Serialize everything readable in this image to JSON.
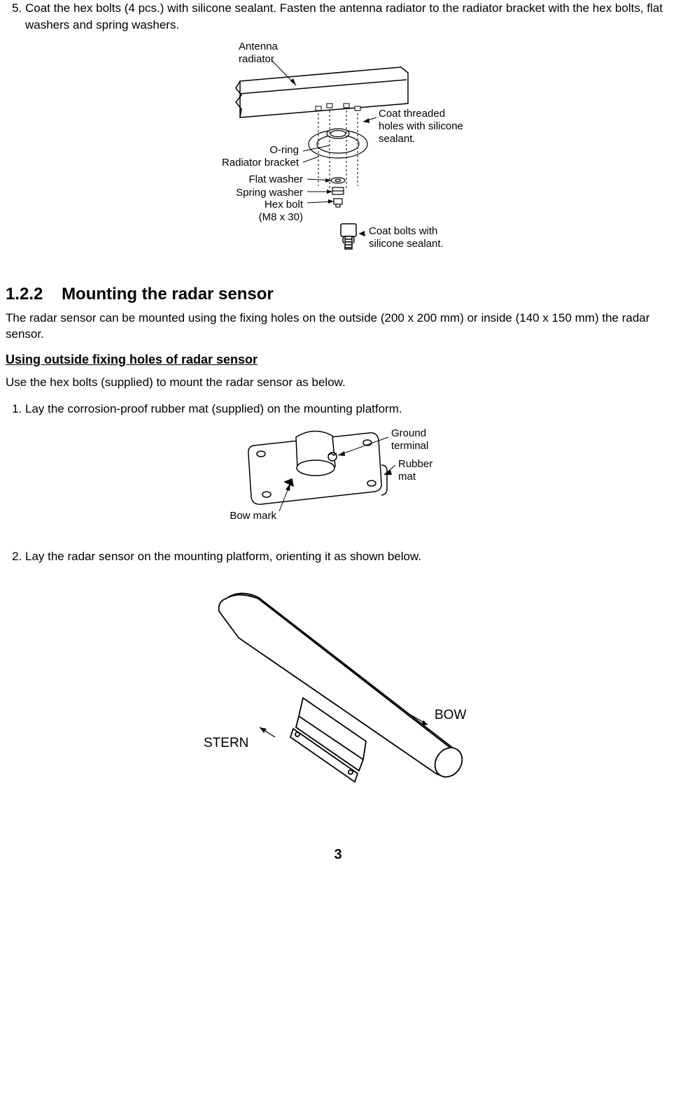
{
  "step5": {
    "num": "5.",
    "text": "Coat the hex bolts (4 pcs.) with silicone sealant. Fasten the antenna radiator to the radiator bracket with the hex bolts, flat washers and spring washers."
  },
  "fig1": {
    "antenna": "Antenna\nradiator",
    "coat_holes": "Coat threaded\nholes with silicone\nsealant.",
    "oring": "O-ring",
    "rad_bracket": "Radiator bracket",
    "flat_washer": "Flat washer",
    "spring_washer": "Spring washer",
    "hex_bolt": "Hex bolt\n(M8 x 30)",
    "coat_bolts": "Coat bolts with\nsilicone sealant."
  },
  "sec": {
    "num": "1.2.2",
    "title": "Mounting the radar sensor",
    "intro": "The radar sensor can be mounted using the fixing holes on the outside (200 x 200 mm) or inside (140 x 150 mm) the radar sensor.",
    "sub": "Using outside fixing holes of radar sensor",
    "sub_intro": "Use the hex bolts (supplied) to mount the radar sensor as below.",
    "step1": "Lay the corrosion-proof rubber mat (supplied) on the mounting platform.",
    "step2": "Lay the radar sensor on the mounting platform, orienting it as shown below."
  },
  "fig2": {
    "ground": "Ground\nterminal",
    "rubber": "Rubber\nmat",
    "bow_mark": "Bow mark"
  },
  "fig3": {
    "stern": "STERN",
    "bow": "BOW"
  },
  "page_number": "3"
}
